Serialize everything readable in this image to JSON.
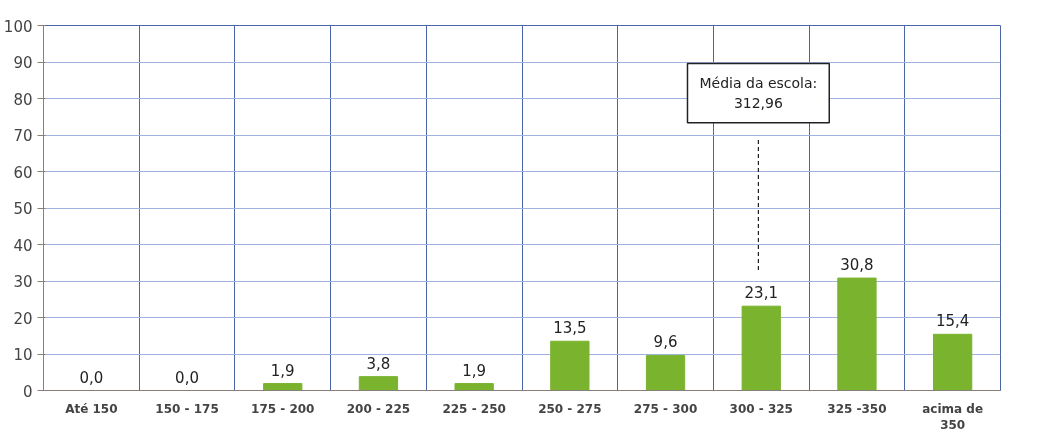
{
  "chart_data": {
    "type": "bar",
    "categories": [
      "Até 150",
      "150 - 175",
      "175 - 200",
      "200 - 225",
      "225 - 250",
      "250 - 275",
      "275 - 300",
      "300 - 325",
      "325 -350",
      "acima de 350"
    ],
    "values": [
      0.0,
      0.0,
      1.9,
      3.8,
      1.9,
      13.5,
      9.6,
      23.1,
      30.8,
      15.4
    ],
    "value_labels": [
      "0,0",
      "0,0",
      "1,9",
      "3,8",
      "1,9",
      "13,5",
      "9,6",
      "23,1",
      "30,8",
      "15,4"
    ],
    "color": "#7ab32e",
    "ylim": [
      0,
      100
    ],
    "yticks": [
      0,
      10,
      20,
      30,
      40,
      50,
      60,
      70,
      80,
      90,
      100
    ],
    "grid": true,
    "annotations": [
      "Média da escola:\n312,96"
    ]
  }
}
